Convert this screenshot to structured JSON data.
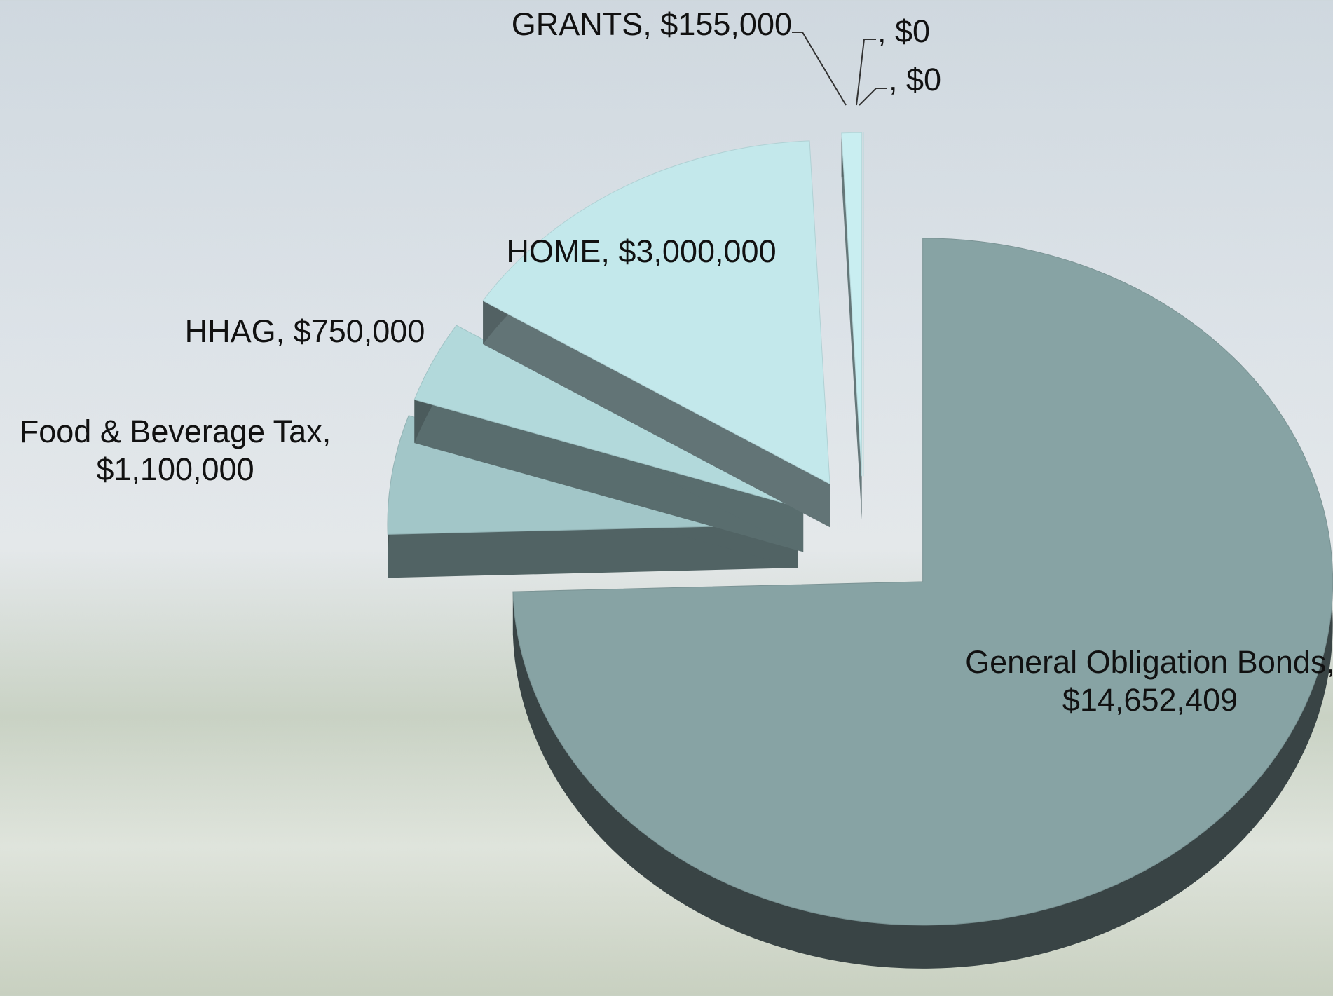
{
  "chart_data": {
    "type": "pie3d",
    "values": [
      14652409,
      1100000,
      750000,
      3000000,
      155000,
      0,
      0
    ],
    "value_labels": [
      "General Obligation Bonds, $14,652,409",
      "Food & Beverage Tax, $1,100,000",
      "HHAG, $750,000",
      "HOME, $3,000,000",
      "GRANTS, $155,000",
      ", $0",
      ", $0"
    ],
    "colors": [
      "#87a3a4",
      "#a2c6c8",
      "#b2d9db",
      "#c3e8eb",
      "#c9eef1",
      "#c9eef1",
      "#c9eef1"
    ]
  }
}
